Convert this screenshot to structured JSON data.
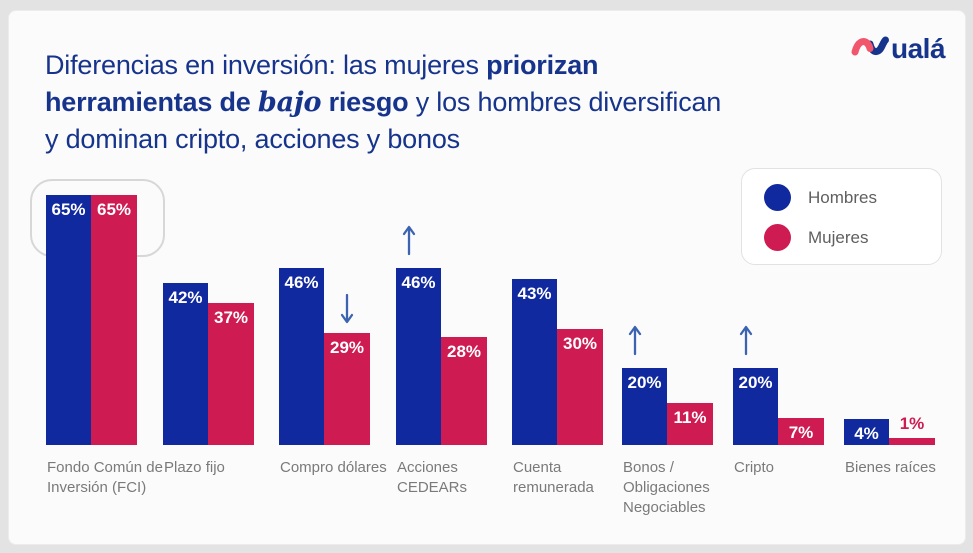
{
  "header": {
    "logo_text": "ualá",
    "logo_colors": {
      "mark_pink": "#f2566c",
      "mark_blue": "#17348c",
      "text_blue": "#17348c"
    }
  },
  "title": {
    "full_text": "Diferencias en inversión: las mujeres priorizan herramientas de bajo riesgo y los hombres diversifican y dominan cripto, acciones y bonos",
    "color": "#17348c",
    "lines": [
      [
        {
          "t": "Diferencias en inversión: las mujeres ",
          "s": "regular"
        },
        {
          "t": "priorizan",
          "s": "bold"
        }
      ],
      [
        {
          "t": "herramientas de ",
          "s": "bold"
        },
        {
          "t": "bajo",
          "s": "serif-bold-italic"
        },
        {
          "t": " ",
          "s": "bold"
        },
        {
          "t": "riesgo",
          "s": "bold"
        },
        {
          "t": " y los hombres diversifican",
          "s": "regular"
        }
      ],
      [
        {
          "t": "y dominan cripto, acciones y bonos",
          "s": "regular"
        }
      ]
    ]
  },
  "legend": {
    "position": "top-right",
    "items": [
      {
        "label": "Hombres",
        "color": "#11299e"
      },
      {
        "label": "Mujeres",
        "color": "#ce1b52"
      }
    ]
  },
  "chart_data": {
    "type": "bar",
    "unit": "%",
    "ylim": [
      0,
      70
    ],
    "grid": false,
    "legend_position": "top-right",
    "series_names": [
      "Hombres",
      "Mujeres"
    ],
    "series_colors": {
      "Hombres": "#11299e",
      "Mujeres": "#ce1b52"
    },
    "arrow_color": "#3c63b0",
    "categories": [
      {
        "label": "Fondo Común de Inversión (FCI)",
        "label_lines": [
          "Fondo Común de",
          "Inversión (FCI)"
        ],
        "hombres": 65,
        "mujeres": 65,
        "arrow": null,
        "highlighted": true
      },
      {
        "label": "Plazo fijo",
        "label_lines": [
          "Plazo fijo"
        ],
        "hombres": 42,
        "mujeres": 37,
        "arrow": null,
        "highlighted": false
      },
      {
        "label": "Compro dólares",
        "label_lines": [
          "Compro dólares"
        ],
        "hombres": 46,
        "mujeres": 29,
        "arrow": "down",
        "highlighted": false
      },
      {
        "label": "Acciones CEDEARs",
        "label_lines": [
          "Acciones",
          "CEDEARs"
        ],
        "hombres": 46,
        "mujeres": 28,
        "arrow": "up",
        "highlighted": false
      },
      {
        "label": "Cuenta remunerada",
        "label_lines": [
          "Cuenta",
          "remunerada"
        ],
        "hombres": 43,
        "mujeres": 30,
        "arrow": null,
        "highlighted": false
      },
      {
        "label": "Bonos / Obligaciones Negociables",
        "label_lines": [
          "Bonos /",
          "Obligaciones",
          "Negociables"
        ],
        "hombres": 20,
        "mujeres": 11,
        "arrow": "up",
        "highlighted": false
      },
      {
        "label": "Cripto",
        "label_lines": [
          "Cripto"
        ],
        "hombres": 20,
        "mujeres": 7,
        "arrow": "up",
        "highlighted": false
      },
      {
        "label": "Bienes raíces",
        "label_lines": [
          "Bienes raíces"
        ],
        "hombres": 4,
        "mujeres": 1,
        "arrow": null,
        "highlighted": false
      }
    ]
  }
}
